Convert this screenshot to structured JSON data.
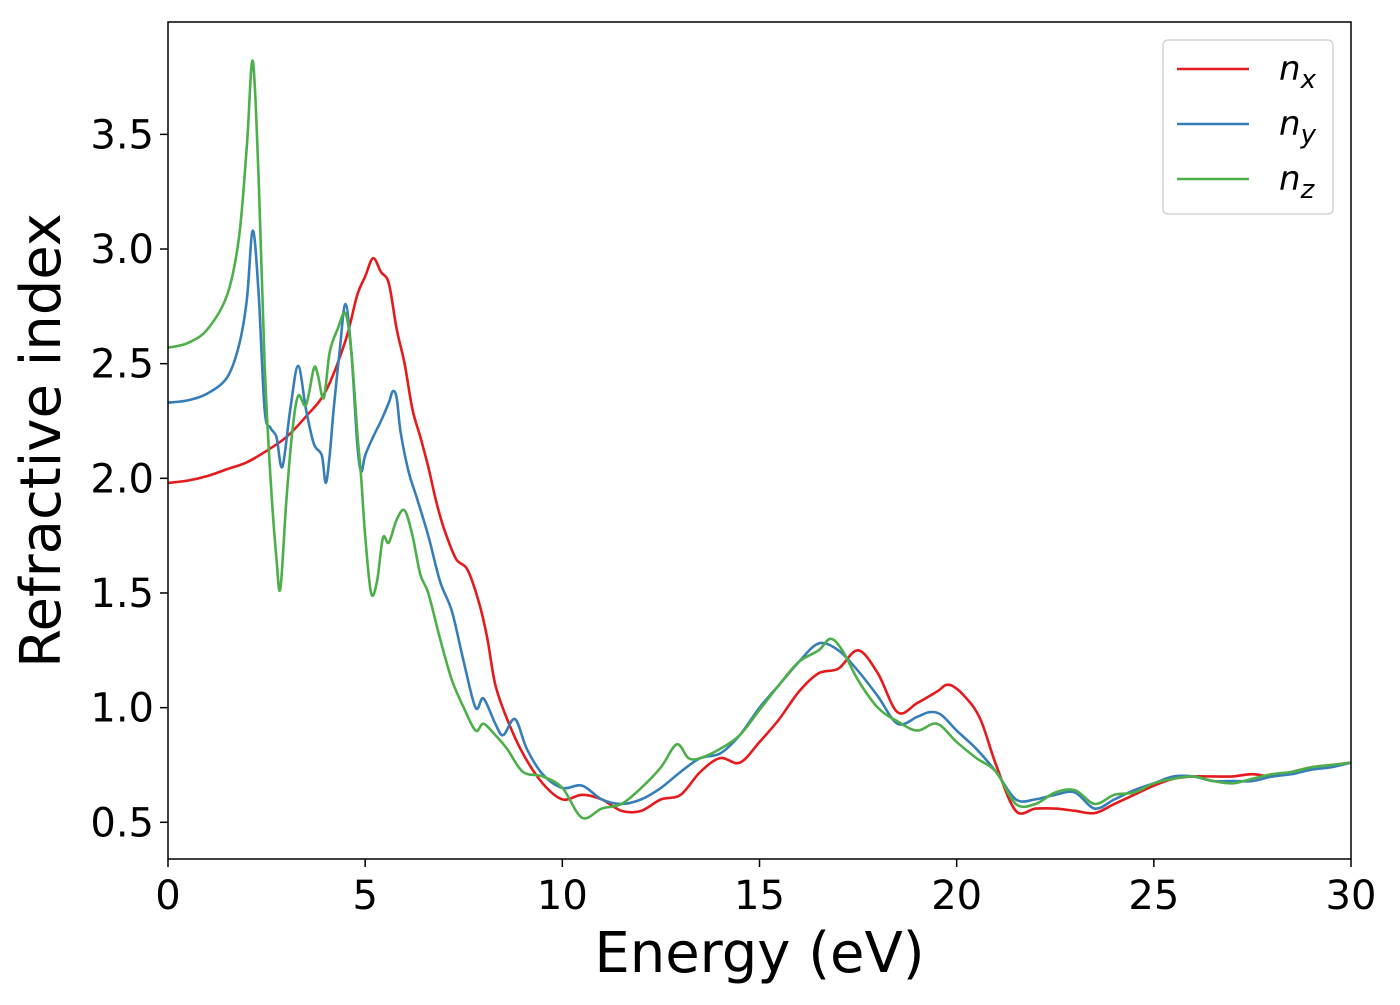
{
  "chart_data": {
    "type": "line",
    "title": "",
    "xlabel": "Energy (eV)",
    "ylabel": "Refractive index",
    "xlim": [
      0,
      30
    ],
    "ylim": [
      0.34,
      3.99
    ],
    "xticks": [
      0,
      5,
      10,
      15,
      20,
      25,
      30
    ],
    "yticks": [
      0.5,
      1.0,
      1.5,
      2.0,
      2.5,
      3.0,
      3.5
    ],
    "xtick_labels": [
      "0",
      "5",
      "10",
      "15",
      "20",
      "25",
      "30"
    ],
    "ytick_labels": [
      "0.5",
      "1.0",
      "1.5",
      "2.0",
      "2.5",
      "3.0",
      "3.5"
    ],
    "grid": false,
    "legend_position": "top-right",
    "series": [
      {
        "name": "n",
        "subscript": "x",
        "color": "#e41a1c",
        "x": [
          0,
          0.5,
          1.0,
          1.5,
          2.0,
          2.5,
          3.0,
          3.5,
          4.0,
          4.5,
          4.8,
          5.0,
          5.2,
          5.4,
          5.6,
          5.8,
          6.0,
          6.2,
          6.4,
          6.6,
          6.8,
          7.0,
          7.3,
          7.6,
          7.9,
          8.1,
          8.3,
          8.6,
          9.0,
          9.5,
          10.0,
          10.5,
          11.0,
          11.5,
          12.0,
          12.5,
          13.0,
          13.5,
          14.0,
          14.5,
          15.0,
          15.5,
          16.0,
          16.5,
          17.0,
          17.5,
          18.0,
          18.5,
          19.0,
          19.5,
          19.8,
          20.2,
          20.6,
          21.0,
          21.5,
          22.0,
          22.5,
          23.0,
          23.5,
          24.0,
          24.5,
          25.0,
          25.5,
          26.0,
          26.5,
          27.0,
          27.5,
          28.0,
          28.5,
          29.0,
          29.5,
          30.0
        ],
        "values": [
          1.98,
          1.99,
          2.01,
          2.04,
          2.07,
          2.12,
          2.18,
          2.27,
          2.38,
          2.6,
          2.8,
          2.88,
          2.96,
          2.9,
          2.85,
          2.65,
          2.5,
          2.3,
          2.18,
          2.05,
          1.9,
          1.78,
          1.65,
          1.6,
          1.45,
          1.3,
          1.1,
          0.95,
          0.8,
          0.67,
          0.6,
          0.62,
          0.6,
          0.55,
          0.55,
          0.6,
          0.62,
          0.72,
          0.78,
          0.76,
          0.85,
          0.95,
          1.07,
          1.15,
          1.17,
          1.25,
          1.15,
          0.98,
          1.02,
          1.07,
          1.1,
          1.05,
          0.95,
          0.75,
          0.55,
          0.56,
          0.56,
          0.55,
          0.54,
          0.58,
          0.62,
          0.66,
          0.69,
          0.7,
          0.7,
          0.7,
          0.71,
          0.7,
          0.72,
          0.74,
          0.75,
          0.76
        ]
      },
      {
        "name": "n",
        "subscript": "y",
        "color": "#377eb8",
        "x": [
          0,
          0.5,
          1.0,
          1.5,
          1.8,
          2.0,
          2.15,
          2.3,
          2.45,
          2.6,
          2.75,
          2.9,
          3.1,
          3.3,
          3.5,
          3.7,
          3.9,
          4.0,
          4.1,
          4.2,
          4.35,
          4.5,
          4.65,
          4.8,
          4.9,
          5.0,
          5.2,
          5.4,
          5.6,
          5.7,
          5.8,
          5.9,
          6.1,
          6.3,
          6.6,
          6.9,
          7.2,
          7.5,
          7.8,
          8.0,
          8.3,
          8.5,
          8.8,
          9.1,
          9.5,
          10.0,
          10.5,
          11.0,
          11.5,
          12.0,
          12.5,
          13.0,
          13.5,
          14.0,
          14.5,
          15.0,
          15.5,
          16.0,
          16.5,
          17.0,
          17.5,
          18.0,
          18.5,
          19.0,
          19.3,
          19.6,
          20.0,
          20.5,
          21.0,
          21.5,
          22.0,
          22.5,
          23.0,
          23.5,
          24.0,
          24.5,
          25.0,
          25.5,
          26.0,
          26.5,
          27.0,
          27.5,
          28.0,
          28.5,
          29.0,
          29.5,
          30.0
        ],
        "values": [
          2.33,
          2.34,
          2.37,
          2.44,
          2.58,
          2.78,
          3.08,
          2.8,
          2.3,
          2.22,
          2.18,
          2.05,
          2.3,
          2.49,
          2.3,
          2.15,
          2.1,
          1.98,
          2.1,
          2.3,
          2.55,
          2.76,
          2.55,
          2.15,
          2.03,
          2.1,
          2.18,
          2.25,
          2.33,
          2.38,
          2.35,
          2.2,
          2.03,
          1.92,
          1.75,
          1.55,
          1.42,
          1.2,
          1.0,
          1.04,
          0.93,
          0.88,
          0.95,
          0.82,
          0.71,
          0.65,
          0.66,
          0.6,
          0.58,
          0.6,
          0.65,
          0.72,
          0.78,
          0.8,
          0.88,
          1.0,
          1.1,
          1.2,
          1.28,
          1.25,
          1.16,
          1.05,
          0.93,
          0.96,
          0.98,
          0.97,
          0.9,
          0.82,
          0.72,
          0.6,
          0.6,
          0.62,
          0.63,
          0.56,
          0.6,
          0.64,
          0.67,
          0.7,
          0.7,
          0.68,
          0.68,
          0.68,
          0.7,
          0.71,
          0.73,
          0.74,
          0.76
        ]
      },
      {
        "name": "n",
        "subscript": "z",
        "color": "#4daf4a",
        "x": [
          0,
          0.5,
          1.0,
          1.5,
          1.8,
          2.0,
          2.15,
          2.3,
          2.45,
          2.6,
          2.75,
          2.85,
          3.0,
          3.15,
          3.3,
          3.5,
          3.7,
          3.8,
          3.95,
          4.1,
          4.3,
          4.5,
          4.65,
          4.8,
          4.9,
          5.0,
          5.15,
          5.3,
          5.45,
          5.6,
          5.8,
          6.0,
          6.2,
          6.4,
          6.6,
          6.9,
          7.2,
          7.5,
          7.8,
          8.0,
          8.3,
          8.6,
          9.0,
          9.5,
          10.0,
          10.5,
          11.0,
          11.5,
          12.0,
          12.5,
          12.9,
          13.2,
          13.5,
          14.0,
          14.5,
          15.0,
          15.5,
          16.0,
          16.5,
          16.8,
          17.1,
          17.5,
          18.0,
          18.5,
          19.0,
          19.5,
          20.0,
          20.5,
          21.0,
          21.5,
          22.0,
          22.5,
          23.0,
          23.5,
          24.0,
          24.5,
          25.0,
          25.5,
          26.0,
          26.5,
          27.0,
          27.5,
          28.0,
          28.5,
          29.0,
          29.5,
          30.0
        ],
        "values": [
          2.57,
          2.59,
          2.65,
          2.8,
          3.05,
          3.45,
          3.82,
          3.3,
          2.5,
          2.0,
          1.65,
          1.52,
          1.9,
          2.2,
          2.36,
          2.32,
          2.48,
          2.45,
          2.35,
          2.55,
          2.65,
          2.72,
          2.55,
          2.2,
          2.0,
          1.75,
          1.5,
          1.55,
          1.74,
          1.72,
          1.82,
          1.86,
          1.75,
          1.58,
          1.5,
          1.3,
          1.12,
          1.0,
          0.9,
          0.93,
          0.88,
          0.82,
          0.72,
          0.7,
          0.65,
          0.52,
          0.56,
          0.58,
          0.65,
          0.74,
          0.84,
          0.78,
          0.78,
          0.82,
          0.88,
          0.99,
          1.1,
          1.2,
          1.25,
          1.3,
          1.25,
          1.12,
          1.0,
          0.94,
          0.9,
          0.93,
          0.85,
          0.78,
          0.72,
          0.58,
          0.58,
          0.63,
          0.64,
          0.58,
          0.62,
          0.63,
          0.67,
          0.69,
          0.7,
          0.68,
          0.67,
          0.69,
          0.71,
          0.72,
          0.74,
          0.75,
          0.76
        ]
      }
    ]
  }
}
